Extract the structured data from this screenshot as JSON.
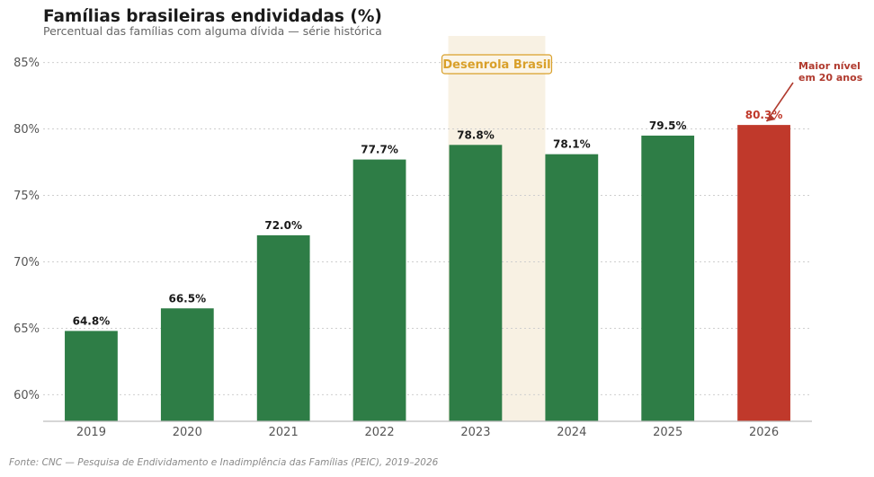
{
  "header": {
    "title": "Famílias brasileiras endividadas (%)",
    "subtitle": "Percentual das famílias com alguma dívida — série histórica"
  },
  "source": "Fonte: CNC — Pesquisa de Endividamento e Inadimplência das Famílias (PEIC), 2019–2026",
  "chart_data": {
    "type": "bar",
    "title": "Famílias brasileiras endividadas (%)",
    "subtitle": "Percentual das famílias com alguma dívida — série histórica",
    "categories": [
      "2019",
      "2020",
      "2021",
      "2022",
      "2023",
      "2024",
      "2025",
      "2026"
    ],
    "values": [
      64.8,
      66.5,
      72.0,
      77.7,
      78.8,
      78.1,
      79.5,
      80.3
    ],
    "value_labels": [
      "64.8%",
      "66.5%",
      "72.0%",
      "77.7%",
      "78.8%",
      "78.1%",
      "79.5%",
      "80.3%"
    ],
    "ylim": [
      58,
      87
    ],
    "yticks": [
      60,
      65,
      70,
      75,
      80,
      85
    ],
    "ytick_labels": [
      "60%",
      "65%",
      "70%",
      "75%",
      "80%",
      "85%"
    ],
    "xlabel": "",
    "ylabel": "",
    "grid": "horizontal dotted",
    "highlight": {
      "category": "2026",
      "color": "#c0392b"
    },
    "bar_color": "#2e7d46",
    "shaded_period": {
      "from": "2023",
      "to": "2024",
      "label": "Desenrola Brasil",
      "color": "#f8f1e3",
      "label_color": "#d9a02a"
    },
    "annotation": {
      "text_lines": [
        "Maior nível",
        "em 20 anos"
      ],
      "target": "2026",
      "color": "#b03a2e"
    }
  }
}
